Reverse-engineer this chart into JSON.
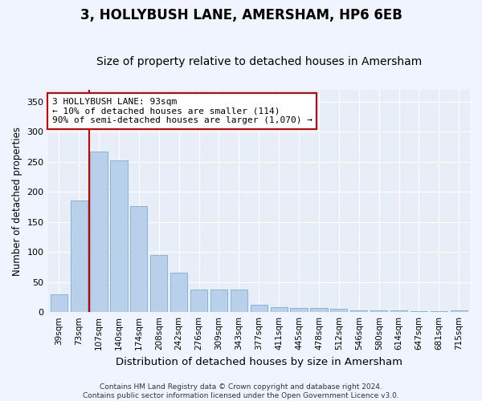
{
  "title": "3, HOLLYBUSH LANE, AMERSHAM, HP6 6EB",
  "subtitle": "Size of property relative to detached houses in Amersham",
  "xlabel": "Distribution of detached houses by size in Amersham",
  "ylabel": "Number of detached properties",
  "categories": [
    "39sqm",
    "73sqm",
    "107sqm",
    "140sqm",
    "174sqm",
    "208sqm",
    "242sqm",
    "276sqm",
    "309sqm",
    "343sqm",
    "377sqm",
    "411sqm",
    "445sqm",
    "478sqm",
    "512sqm",
    "546sqm",
    "580sqm",
    "614sqm",
    "647sqm",
    "681sqm",
    "715sqm"
  ],
  "values": [
    30,
    186,
    267,
    253,
    177,
    95,
    65,
    38,
    38,
    38,
    12,
    8,
    7,
    7,
    5,
    3,
    3,
    3,
    1,
    1,
    3
  ],
  "bar_color": "#b8d0ea",
  "bar_edge_color": "#7aadd4",
  "background_color": "#e8eef8",
  "grid_color": "#ffffff",
  "vline_x": 1.5,
  "vline_color": "#cc0000",
  "annotation_text": "3 HOLLYBUSH LANE: 93sqm\n← 10% of detached houses are smaller (114)\n90% of semi-detached houses are larger (1,070) →",
  "annotation_box_color": "#cc0000",
  "ylim": [
    0,
    370
  ],
  "yticks": [
    0,
    50,
    100,
    150,
    200,
    250,
    300,
    350
  ],
  "footer_text": "Contains HM Land Registry data © Crown copyright and database right 2024.\nContains public sector information licensed under the Open Government Licence v3.0.",
  "title_fontsize": 12,
  "subtitle_fontsize": 10,
  "xlabel_fontsize": 9.5,
  "ylabel_fontsize": 8.5,
  "tick_fontsize": 7.5,
  "annotation_fontsize": 8,
  "footer_fontsize": 6.5
}
